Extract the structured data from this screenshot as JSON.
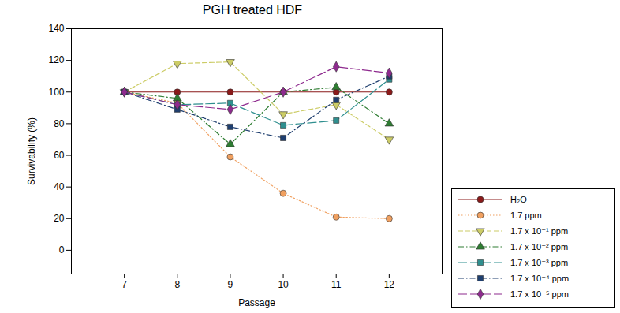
{
  "chart_data": {
    "type": "line",
    "title": "PGH treated HDF",
    "x_label": "Passage",
    "y_label": "Survivability (%)",
    "x": [
      7,
      8,
      9,
      10,
      11,
      12
    ],
    "xlim": [
      6,
      13
    ],
    "xticks": [
      7,
      8,
      9,
      10,
      11,
      12
    ],
    "ylim": [
      -15,
      140
    ],
    "yticks": [
      0,
      20,
      40,
      60,
      80,
      100,
      120,
      140
    ],
    "grid": false,
    "legend": "lower right",
    "series": [
      {
        "name": "H₂O",
        "color": "#8b1a1a",
        "marker": "circle",
        "line_style": "solid",
        "values": [
          100,
          100,
          100,
          100,
          100,
          100
        ]
      },
      {
        "name": "1.7 ppm",
        "color": "#f0a060",
        "marker": "circle",
        "line_style": "dotted",
        "values": [
          100,
          93,
          59,
          36,
          21,
          20
        ]
      },
      {
        "name": "1.7 x 10⁻¹ ppm",
        "color": "#cccc66",
        "marker": "triangle_down",
        "line_style": "dashed",
        "values": [
          100,
          118,
          119,
          86,
          92,
          70
        ]
      },
      {
        "name": "1.7 x 10⁻² ppm",
        "color": "#2e7d32",
        "marker": "triangle",
        "line_style": "dashdot",
        "values": [
          100,
          96,
          67,
          100,
          103,
          80
        ]
      },
      {
        "name": "1.7 x 10⁻³ ppm",
        "color": "#2f8f8f",
        "marker": "square",
        "line_style": "longdash",
        "values": [
          100,
          92,
          93,
          79,
          82,
          108
        ]
      },
      {
        "name": "1.7 x 10⁻⁴ ppm",
        "color": "#1f3f6f",
        "marker": "square",
        "line_style": "dashdot",
        "values": [
          100,
          89,
          78,
          71,
          95,
          110
        ]
      },
      {
        "name": "1.7 x 10⁻⁵ ppm",
        "color": "#8e2a8e",
        "marker": "diamond",
        "line_style": "longdash",
        "values": [
          100,
          92,
          89,
          100,
          116,
          112
        ]
      }
    ]
  }
}
